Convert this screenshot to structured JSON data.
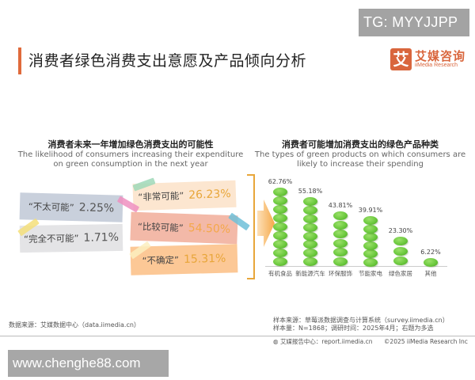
{
  "watermarks": {
    "top": "TG: MYYJJPP",
    "bottom": "www.chenghe88.com"
  },
  "header": {
    "title": "消费者绿色消费支出意愿及产品倾向分析",
    "logo": {
      "glyph": "艾",
      "name_cn": "艾媒咨询",
      "name_en": "iiMedia Research"
    },
    "accent_color": "#e06a3b"
  },
  "left_section": {
    "title_cn": "消费者未来一年增加绿色消费支出的可能性",
    "title_en_line1": "The likelihood of consumers increasing their expenditure",
    "title_en_line2": "on green consumption in the next year",
    "notes": [
      {
        "label": "“不太可能”",
        "value": "2.25%",
        "bg": "#c9d0dc",
        "color": "#555"
      },
      {
        "label": "“完全不可能”",
        "value": "1.71%",
        "bg": "#e2e2e4",
        "color": "#555"
      },
      {
        "label": "“非常可能”",
        "value": "26.23%",
        "bg": "#fbe3cc",
        "color": "#e8a63a"
      },
      {
        "label": "“比较可能”",
        "value": "54.50%",
        "bg": "#f3b9a8",
        "color": "#f4a84a"
      },
      {
        "label": "“不确定”",
        "value": "15.31%",
        "bg": "#fcc896",
        "color": "#e8a63a"
      }
    ]
  },
  "right_section": {
    "title_cn": "消费者可能增加消费支出的绿色产品种类",
    "title_en_line1": "The types of green products on which consumers are",
    "title_en_line2": "likely to increase their spending"
  },
  "chart_data": [
    {
      "type": "pie",
      "title": "消费者未来一年增加绿色消费支出的可能性",
      "subtitle": "The likelihood of consumers increasing their expenditure on green consumption in the next year",
      "categories": [
        "非常可能",
        "比较可能",
        "不确定",
        "不太可能",
        "完全不可能"
      ],
      "values": [
        26.23,
        54.5,
        15.31,
        2.25,
        1.71
      ],
      "unit": "%"
    },
    {
      "type": "bar",
      "title": "消费者可能增加消费支出的绿色产品种类",
      "subtitle": "The types of green products on which consumers are likely to increase their spending",
      "categories": [
        "有机食品",
        "新能源汽车",
        "环保服饰",
        "节能家电",
        "绿色家居",
        "其他"
      ],
      "values": [
        62.76,
        55.18,
        43.81,
        39.91,
        23.3,
        6.22
      ],
      "value_labels": [
        "62.76%",
        "55.18%",
        "43.81%",
        "39.91%",
        "23.30%",
        "6.22%"
      ],
      "xlabel": "",
      "ylabel": "",
      "ylim": [
        0,
        70
      ],
      "grid": false,
      "legend": "none",
      "bar_color": "#6cc93e"
    }
  ],
  "footer": {
    "data_source": "数据来源：艾媒数据中心（data.iimedia.cn）",
    "sample_source": "样本来源：草莓派数据调查与计算系统（survey.iimedia.cn）",
    "sample_size": "样本量：N=1868；调研时间：2025年4月；右题为多选",
    "report_center": "艾媒报告中心：report.iimedia.cn",
    "copyright": "©2025  iiMedia Research  Inc"
  }
}
